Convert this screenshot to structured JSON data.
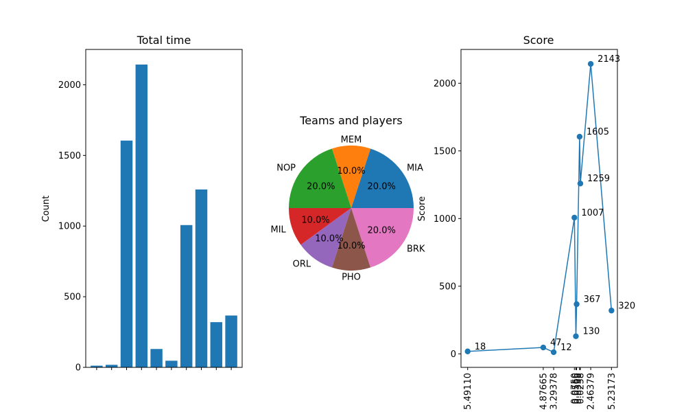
{
  "chart_data": [
    {
      "type": "bar",
      "title": "Total time",
      "xlabel": "",
      "ylabel": "Count",
      "ylim": [
        0,
        2250
      ],
      "yticks": [
        0,
        500,
        1000,
        1500,
        2000
      ],
      "values": [
        12,
        18,
        1605,
        2143,
        130,
        47,
        1007,
        1259,
        320,
        367
      ],
      "color": "#1f77b4"
    },
    {
      "type": "pie",
      "title": "Teams and players",
      "slices": [
        {
          "label": "MIA",
          "value": 20,
          "pct": "20.0%",
          "color": "#1f77b4"
        },
        {
          "label": "MEM",
          "value": 10,
          "pct": "10.0%",
          "color": "#ff7f0e"
        },
        {
          "label": "NOP",
          "value": 20,
          "pct": "20.0%",
          "color": "#2ca02c"
        },
        {
          "label": "MIL",
          "value": 10,
          "pct": "10.0%",
          "color": "#d62728"
        },
        {
          "label": "ORL",
          "value": 10,
          "pct": "10.0%",
          "color": "#9467bd"
        },
        {
          "label": "PHO",
          "value": 10,
          "pct": "10.0%",
          "color": "#8c564b"
        },
        {
          "label": "BRK",
          "value": 20,
          "pct": "20.0%",
          "color": "#e377c2"
        }
      ]
    },
    {
      "type": "line",
      "title": "Score",
      "ylabel": "Score",
      "xlabel": "",
      "ylim": [
        -100,
        2250
      ],
      "yticks": [
        0,
        500,
        1000,
        1500,
        2000
      ],
      "color": "#1f77b4",
      "xtick_labels": [
        "5.49110",
        "4.87665",
        "3.29378",
        "0.0750",
        "0.0566",
        "0.0338",
        "0.0258",
        "2.46379",
        "5.23173"
      ],
      "points": [
        {
          "x": 0.0,
          "y": 18,
          "label": "18"
        },
        {
          "x": 5.1,
          "y": 47,
          "label": "47"
        },
        {
          "x": 5.8,
          "y": 12,
          "label": "12"
        },
        {
          "x": 7.2,
          "y": 1007,
          "label": "1007"
        },
        {
          "x": 7.3,
          "y": 130,
          "label": "130"
        },
        {
          "x": 7.35,
          "y": 367,
          "label": "367"
        },
        {
          "x": 7.55,
          "y": 1605,
          "label": "1605"
        },
        {
          "x": 7.6,
          "y": 1259,
          "label": "1259"
        },
        {
          "x": 8.3,
          "y": 2143,
          "label": "2143"
        },
        {
          "x": 9.7,
          "y": 320,
          "label": "320"
        }
      ],
      "xlim": [
        -0.45,
        10.1
      ]
    }
  ]
}
